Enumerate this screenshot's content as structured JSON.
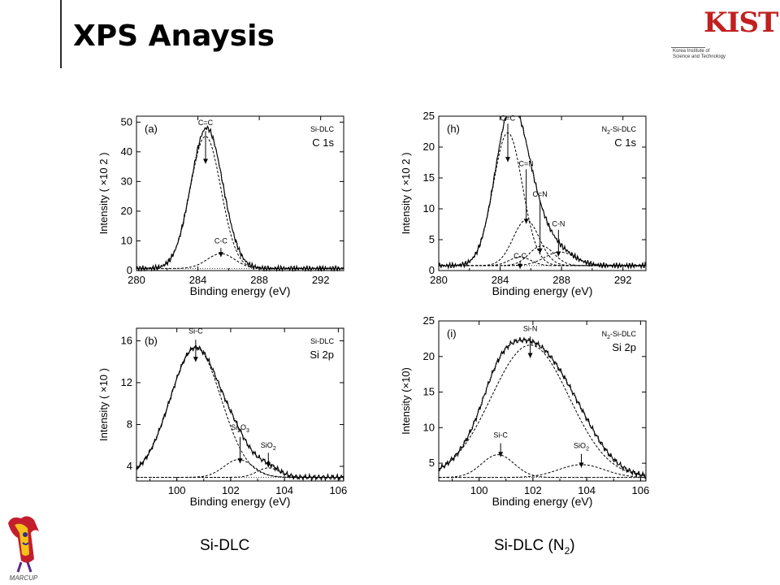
{
  "slide": {
    "title": "XPS Anaysis",
    "logo_mark": "KIST",
    "logo_sub_line1": "Korea Institute of",
    "logo_sub_line2": "Science and Technology",
    "logo_mascot": "MARCUP",
    "caption_left": "Si-DLC",
    "caption_right_main": "Si-DLC (N",
    "caption_right_sub": "2",
    "caption_right_close": ")"
  },
  "chart_data": [
    {
      "id": "a",
      "type": "line",
      "panel_label": "(a)",
      "sample": "Si-DLC",
      "sample_sub": "",
      "sample_rest": "",
      "region": "C 1s",
      "xlabel": "Binding energy (eV)",
      "ylabel": "Intensity ( ×10 2 )",
      "xlim": [
        280,
        293.5
      ],
      "ylim": [
        0,
        52
      ],
      "xticks": [
        280,
        284,
        288,
        292
      ],
      "yticks": [
        0,
        10,
        20,
        30,
        40,
        50
      ],
      "baseline": 0.7,
      "peaks": [
        {
          "name": "C=C",
          "center": 284.5,
          "height": 44.5,
          "width": 1.0
        },
        {
          "name": "C-C",
          "center": 285.5,
          "height": 5.0,
          "width": 0.9
        }
      ],
      "annotations": [
        {
          "text": "C=C",
          "x": 284.5,
          "arrow_from": 47,
          "arrow_to": 36,
          "label_y": 49
        },
        {
          "text": "C-C",
          "x": 285.5,
          "arrow_from": 7.6,
          "arrow_to": 4.6,
          "label_y": 9.2
        }
      ]
    },
    {
      "id": "h",
      "type": "line",
      "panel_label": "(h)",
      "sample": "N",
      "sample_sub": "2",
      "sample_rest": "-Si-DLC",
      "region": "C 1s",
      "xlabel": "Binding energy (eV)",
      "ylabel": "Intensity ( ×10 2 )",
      "xlim": [
        280,
        293.5
      ],
      "ylim": [
        0,
        25
      ],
      "xticks": [
        280,
        284,
        288,
        292
      ],
      "yticks": [
        0,
        5,
        10,
        15,
        20,
        25
      ],
      "baseline": 0.8,
      "peaks": [
        {
          "name": "C=C",
          "center": 284.5,
          "height": 21.5,
          "width": 0.95
        },
        {
          "name": "C=N",
          "center": 285.7,
          "height": 7.4,
          "width": 0.85
        },
        {
          "name": "C=N",
          "center": 286.7,
          "height": 3.2,
          "width": 0.8
        },
        {
          "name": "C-N",
          "center": 287.9,
          "height": 2.2,
          "width": 1.0
        },
        {
          "name": "C-C",
          "center": 285.3,
          "height": 1.4,
          "width": 0.7
        }
      ],
      "annotations": [
        {
          "text": "C=C",
          "x": 284.5,
          "arrow_from": 23.8,
          "arrow_to": 17.6,
          "label_y": 24.3
        },
        {
          "text": "C=N",
          "x": 285.7,
          "arrow_from": 16.4,
          "arrow_to": 7.6,
          "label_y": 16.9
        },
        {
          "text": "C=N",
          "x": 286.6,
          "arrow_from": 11.4,
          "arrow_to": 2.8,
          "label_y": 12.0
        },
        {
          "text": "C-N",
          "x": 287.8,
          "arrow_from": 6.6,
          "arrow_to": 2.3,
          "label_y": 7.2
        },
        {
          "text": "C-C",
          "x": 285.3,
          "arrow_from": 1.5,
          "arrow_to": 0.3,
          "label_y": 2.0
        }
      ]
    },
    {
      "id": "b",
      "type": "line",
      "panel_label": "(b)",
      "sample": "Si-DLC",
      "sample_sub": "",
      "sample_rest": "",
      "region": "Si 2p",
      "xlabel": "Binding energy (eV)",
      "ylabel": "Intensity ( ×10 )",
      "xlim": [
        98.5,
        106.2
      ],
      "ylim": [
        2.6,
        17.2
      ],
      "xticks": [
        100,
        102,
        104,
        106
      ],
      "yticks": [
        4,
        8,
        12,
        16
      ],
      "baseline": 2.95,
      "peaks": [
        {
          "name": "Si-C",
          "center": 100.7,
          "height": 12.4,
          "width": 0.95
        },
        {
          "name": "Si2O3",
          "center": 102.3,
          "height": 1.7,
          "width": 0.55
        },
        {
          "name": "SiO2",
          "center": 103.4,
          "height": 0.9,
          "width": 0.42
        }
      ],
      "annotations": [
        {
          "text": "Si-C",
          "x": 100.7,
          "arrow_from": 16.1,
          "arrow_to": 14.0,
          "label_y": 16.7
        },
        {
          "text": "Si2O3",
          "x": 102.35,
          "arrow_from": 6.8,
          "arrow_to": 4.3,
          "label_y": 7.5
        },
        {
          "text": "SiO2",
          "x": 103.4,
          "arrow_from": 5.3,
          "arrow_to": 3.9,
          "label_y": 5.8
        }
      ]
    },
    {
      "id": "i",
      "type": "line",
      "panel_label": "(i)",
      "sample": "N",
      "sample_sub": "2",
      "sample_rest": "-Si-DLC",
      "region": "Si 2p",
      "xlabel": "Binding energy (eV)",
      "ylabel": "Intensity (×10)",
      "xlim": [
        98.5,
        106.2
      ],
      "ylim": [
        2.5,
        25
      ],
      "xticks": [
        100,
        102,
        104,
        106
      ],
      "yticks": [
        5,
        10,
        15,
        20,
        25
      ],
      "baseline": 3.0,
      "peaks": [
        {
          "name": "Si-N",
          "center": 101.9,
          "height": 18.6,
          "width": 1.45
        },
        {
          "name": "Si-C",
          "center": 100.7,
          "height": 3.2,
          "width": 0.6
        },
        {
          "name": "SiO2",
          "center": 103.8,
          "height": 1.8,
          "width": 0.85
        }
      ],
      "annotations": [
        {
          "text": "Si-N",
          "x": 101.9,
          "arrow_from": 22.8,
          "arrow_to": 19.8,
          "label_y": 23.6
        },
        {
          "text": "Si-C",
          "x": 100.8,
          "arrow_from": 7.8,
          "arrow_to": 5.9,
          "label_y": 8.6
        },
        {
          "text": "SiO2",
          "x": 103.8,
          "arrow_from": 6.3,
          "arrow_to": 4.4,
          "label_y": 7.1
        }
      ]
    }
  ]
}
